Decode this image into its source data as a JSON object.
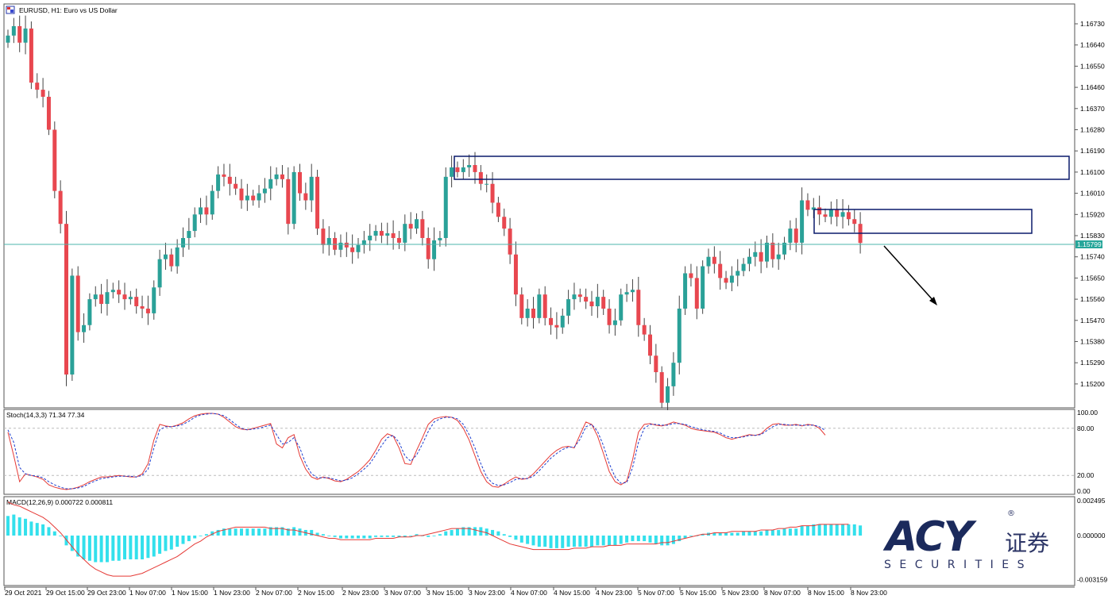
{
  "window": {
    "title": "EURUSD, H1:  Euro vs US Dollar",
    "symbol_icon": "chart-window-icon"
  },
  "colors": {
    "bull_candle": "#2aa198",
    "bear_candle": "#e8474f",
    "wick": "#444444",
    "frame": "#555555",
    "zone_box": "#0a1a6b",
    "price_line": "#4db6ac",
    "price_tag": "#26a69a",
    "stoch_main": "#e53935",
    "stoch_signal": "#1e3fcf",
    "macd_hist": "#33e0ec",
    "macd_signal": "#e53935",
    "arrow": "#000000",
    "logo_dark": "#1b2a5c",
    "logo_text": "#2c3566"
  },
  "chart_data": [
    {
      "type": "candlestick",
      "symbol": "EURUSD",
      "timeframe": "H1",
      "description": "Euro vs US Dollar",
      "ylim": [
        1.1511,
        1.1682
      ],
      "y_ticks": [
        "1.16730",
        "1.16640",
        "1.16550",
        "1.16460",
        "1.16370",
        "1.16280",
        "1.16190",
        "1.16100",
        "1.16010",
        "1.15920",
        "1.15830",
        "1.15740",
        "1.15650",
        "1.15560",
        "1.15470",
        "1.15380",
        "1.15290",
        "1.15200"
      ],
      "x_ticks": [
        "29 Oct 2021",
        "29 Oct 15:00",
        "29 Oct 23:00",
        "1 Nov 07:00",
        "1 Nov 15:00",
        "1 Nov 23:00",
        "2 Nov 07:00",
        "2 Nov 15:00",
        "2 Nov 23:00",
        "3 Nov 07:00",
        "3 Nov 15:00",
        "3 Nov 23:00",
        "4 Nov 07:00",
        "4 Nov 15:00",
        "4 Nov 23:00",
        "5 Nov 07:00",
        "5 Nov 15:00",
        "5 Nov 23:00",
        "8 Nov 07:00",
        "8 Nov 15:00",
        "8 Nov 23:00"
      ],
      "current_price": "1.15799",
      "closes": [
        1.1668,
        1.1672,
        1.1665,
        1.1671,
        1.1648,
        1.1645,
        1.1642,
        1.1628,
        1.1602,
        1.1588,
        1.1524,
        1.1566,
        1.1542,
        1.1545,
        1.1556,
        1.1558,
        1.1554,
        1.1559,
        1.156,
        1.1558,
        1.1556,
        1.1557,
        1.1553,
        1.1552,
        1.155,
        1.1561,
        1.1573,
        1.1575,
        1.157,
        1.1578,
        1.1582,
        1.1585,
        1.1592,
        1.1595,
        1.1592,
        1.1602,
        1.1609,
        1.1608,
        1.1605,
        1.1603,
        1.1598,
        1.16,
        1.1598,
        1.1601,
        1.1603,
        1.1607,
        1.1609,
        1.1607,
        1.1588,
        1.161,
        1.1601,
        1.1598,
        1.1608,
        1.1586,
        1.1579,
        1.1582,
        1.1577,
        1.158,
        1.1578,
        1.1576,
        1.1579,
        1.1581,
        1.1583,
        1.1585,
        1.1583,
        1.1584,
        1.1582,
        1.158,
        1.1588,
        1.1586,
        1.159,
        1.1582,
        1.1573,
        1.1581,
        1.1582,
        1.1608,
        1.1612,
        1.161,
        1.1612,
        1.1613,
        1.161,
        1.1605,
        1.1605,
        1.1597,
        1.1591,
        1.1586,
        1.1575,
        1.1558,
        1.1548,
        1.1552,
        1.1548,
        1.1558,
        1.1548,
        1.1545,
        1.1544,
        1.1549,
        1.1556,
        1.1558,
        1.1557,
        1.1555,
        1.1553,
        1.1557,
        1.1552,
        1.1545,
        1.1547,
        1.1558,
        1.1559,
        1.156,
        1.1545,
        1.1541,
        1.1532,
        1.1525,
        1.1512,
        1.1519,
        1.1529,
        1.1552,
        1.1567,
        1.1565,
        1.1552,
        1.157,
        1.1574,
        1.1571,
        1.1565,
        1.1563,
        1.1566,
        1.1568,
        1.1571,
        1.1574,
        1.1576,
        1.1572,
        1.158,
        1.1573,
        1.1575,
        1.158,
        1.1586,
        1.158,
        1.1598,
        1.1594,
        1.1595,
        1.1592,
        1.1591,
        1.1594,
        1.1591,
        1.1593,
        1.159,
        1.1588,
        1.15799
      ]
    },
    {
      "type": "line",
      "name": "Stoch(14,3,3) 71.34 77.34",
      "ylim": [
        0,
        100
      ],
      "y_ticks": [
        "100.00",
        "80.00",
        "20.00",
        "0.00"
      ],
      "levels": [
        80,
        20
      ],
      "series": [
        {
          "name": "main",
          "values": [
            75,
            45,
            12,
            22,
            20,
            18,
            15,
            8,
            5,
            3,
            2,
            3,
            5,
            8,
            12,
            15,
            18,
            18,
            19,
            20,
            19,
            18,
            18,
            22,
            35,
            65,
            85,
            83,
            82,
            84,
            87,
            92,
            96,
            98,
            99,
            99,
            98,
            94,
            88,
            82,
            79,
            78,
            80,
            82,
            84,
            86,
            60,
            55,
            68,
            72,
            45,
            28,
            18,
            15,
            18,
            16,
            13,
            12,
            15,
            20,
            25,
            32,
            40,
            52,
            66,
            73,
            70,
            55,
            35,
            34,
            52,
            68,
            85,
            92,
            94,
            95,
            94,
            90,
            80,
            65,
            45,
            25,
            12,
            6,
            5,
            9,
            14,
            18,
            15,
            16,
            22,
            30,
            38,
            46,
            52,
            56,
            57,
            55,
            72,
            88,
            85,
            70,
            48,
            25,
            12,
            8,
            13,
            40,
            75,
            85,
            86,
            84,
            83,
            85,
            88,
            86,
            84,
            80,
            78,
            77,
            76,
            75,
            72,
            68,
            66,
            68,
            70,
            72,
            71,
            73,
            80,
            85,
            86,
            84,
            84,
            85,
            83,
            85,
            84,
            80,
            71.34
          ]
        },
        {
          "name": "signal",
          "values": [
            78,
            62,
            30,
            22,
            20,
            19,
            17,
            12,
            8,
            5,
            3,
            3,
            4,
            6,
            10,
            13,
            16,
            17,
            18,
            19,
            19,
            19,
            18,
            20,
            28,
            55,
            78,
            82,
            82,
            83,
            85,
            89,
            94,
            97,
            98,
            99,
            98,
            96,
            91,
            85,
            80,
            78,
            79,
            80,
            82,
            84,
            72,
            60,
            62,
            68,
            55,
            35,
            22,
            17,
            17,
            17,
            15,
            13,
            14,
            17,
            22,
            28,
            35,
            46,
            58,
            68,
            71,
            62,
            45,
            38,
            46,
            60,
            76,
            88,
            92,
            94,
            94,
            92,
            85,
            72,
            55,
            35,
            18,
            10,
            7,
            8,
            11,
            15,
            16,
            16,
            19,
            26,
            34,
            42,
            48,
            53,
            56,
            56,
            66,
            82,
            85,
            76,
            58,
            35,
            18,
            10,
            11,
            30,
            62,
            80,
            85,
            85,
            84,
            84,
            86,
            86,
            85,
            82,
            80,
            78,
            77,
            76,
            74,
            70,
            68,
            68,
            69,
            71,
            71,
            72,
            77,
            82,
            85,
            85,
            84,
            84,
            84,
            84,
            84,
            82,
            77.34
          ]
        }
      ]
    },
    {
      "type": "bar+line",
      "name": "MACD(12,26,9) 0.000722 0.000811",
      "ylim": [
        -0.003159,
        0.002495
      ],
      "y_ticks": [
        "0.002495",
        "0.000000",
        "-0.003159"
      ],
      "series": [
        {
          "name": "histogram",
          "values": [
            0.0014,
            0.0015,
            0.0013,
            0.0012,
            0.001,
            0.0009,
            0.0008,
            0.0006,
            0.0003,
            0.0,
            -0.0007,
            -0.0011,
            -0.0015,
            -0.0017,
            -0.0018,
            -0.0019,
            -0.0019,
            -0.0019,
            -0.0018,
            -0.0018,
            -0.0017,
            -0.0017,
            -0.0017,
            -0.0017,
            -0.0016,
            -0.0015,
            -0.0013,
            -0.0011,
            -0.001,
            -0.0008,
            -0.0006,
            -0.0004,
            -0.0002,
            0.0,
            0.0001,
            0.0003,
            0.0004,
            0.0005,
            0.0005,
            0.0005,
            0.0005,
            0.0005,
            0.0005,
            0.0005,
            0.0005,
            0.0006,
            0.0006,
            0.0006,
            0.0005,
            0.0006,
            0.0005,
            0.0004,
            0.0004,
            0.0002,
            0.0001,
            0.0,
            -0.0001,
            -0.0002,
            -0.0002,
            -0.0002,
            -0.0002,
            -0.0002,
            -0.0002,
            -0.0001,
            -0.0001,
            -0.0001,
            -0.0001,
            -0.0001,
            -0.0001,
            0.0,
            0.0001,
            0.0,
            -0.0001,
            0.0,
            0.0001,
            0.0003,
            0.0004,
            0.0005,
            0.0006,
            0.0006,
            0.0006,
            0.0006,
            0.0005,
            0.0004,
            0.0003,
            0.0001,
            -0.0001,
            -0.0003,
            -0.0005,
            -0.0006,
            -0.0007,
            -0.0008,
            -0.0008,
            -0.0009,
            -0.0009,
            -0.0009,
            -0.0008,
            -0.0008,
            -0.0008,
            -0.0008,
            -0.0008,
            -0.0007,
            -0.0007,
            -0.0007,
            -0.0007,
            -0.0006,
            -0.0005,
            -0.0004,
            -0.0004,
            -0.0004,
            -0.0005,
            -0.0006,
            -0.0007,
            -0.0007,
            -0.0006,
            -0.0004,
            -0.0002,
            0.0,
            0.0,
            0.0001,
            0.0002,
            0.0002,
            0.0002,
            0.0002,
            0.0002,
            0.0002,
            0.0003,
            0.0003,
            0.0003,
            0.0003,
            0.0004,
            0.0004,
            0.0004,
            0.0005,
            0.0005,
            0.0005,
            0.0007,
            0.0007,
            0.0008,
            0.0008,
            0.0008,
            0.0008,
            0.0008,
            0.0008,
            0.0008,
            0.0008,
            0.000722
          ]
        },
        {
          "name": "signal",
          "values": [
            0.0024,
            0.0022,
            0.0021,
            0.0019,
            0.0017,
            0.0015,
            0.0013,
            0.001,
            0.0006,
            0.0002,
            -0.0003,
            -0.0008,
            -0.0013,
            -0.0017,
            -0.0021,
            -0.0024,
            -0.0026,
            -0.0028,
            -0.0029,
            -0.0029,
            -0.0029,
            -0.0029,
            -0.0028,
            -0.0027,
            -0.0025,
            -0.0023,
            -0.0021,
            -0.0019,
            -0.0017,
            -0.0015,
            -0.0012,
            -0.0009,
            -0.0006,
            -0.0004,
            -0.0001,
            0.0001,
            0.0003,
            0.0004,
            0.0005,
            0.0006,
            0.0006,
            0.0006,
            0.0006,
            0.0006,
            0.0006,
            0.0005,
            0.0005,
            0.0005,
            0.0004,
            0.0004,
            0.0003,
            0.0002,
            0.0001,
            0.0,
            -0.0001,
            -0.0002,
            -0.0002,
            -0.0003,
            -0.0003,
            -0.0003,
            -0.0003,
            -0.0003,
            -0.0003,
            -0.0002,
            -0.0002,
            -0.0002,
            -0.0002,
            -0.0001,
            -0.0001,
            -0.0001,
            0.0,
            0.0,
            0.0001,
            0.0002,
            0.0003,
            0.0004,
            0.0005,
            0.0005,
            0.0005,
            0.0005,
            0.0004,
            0.0003,
            0.0002,
            0.0,
            -0.0002,
            -0.0004,
            -0.0006,
            -0.0007,
            -0.0008,
            -0.0009,
            -0.001,
            -0.001,
            -0.001,
            -0.001,
            -0.001,
            -0.001,
            -0.001,
            -0.0009,
            -0.0009,
            -0.0009,
            -0.0008,
            -0.0008,
            -0.0008,
            -0.0007,
            -0.0007,
            -0.0007,
            -0.0006,
            -0.0006,
            -0.0006,
            -0.0006,
            -0.0006,
            -0.0006,
            -0.0005,
            -0.0005,
            -0.0004,
            -0.0003,
            -0.0002,
            -0.0001,
            0.0,
            0.0001,
            0.0001,
            0.0002,
            0.0002,
            0.0002,
            0.0003,
            0.0003,
            0.0003,
            0.0003,
            0.0003,
            0.0004,
            0.0004,
            0.0004,
            0.0005,
            0.0005,
            0.0006,
            0.0006,
            0.0007,
            0.0007,
            0.0007,
            0.0008,
            0.0008,
            0.0008,
            0.0008,
            0.0008,
            0.000811
          ]
        }
      ]
    }
  ],
  "logo": {
    "brand": "ACY",
    "cn": "证券",
    "sub": "SECURITIES",
    "reg": "®"
  }
}
